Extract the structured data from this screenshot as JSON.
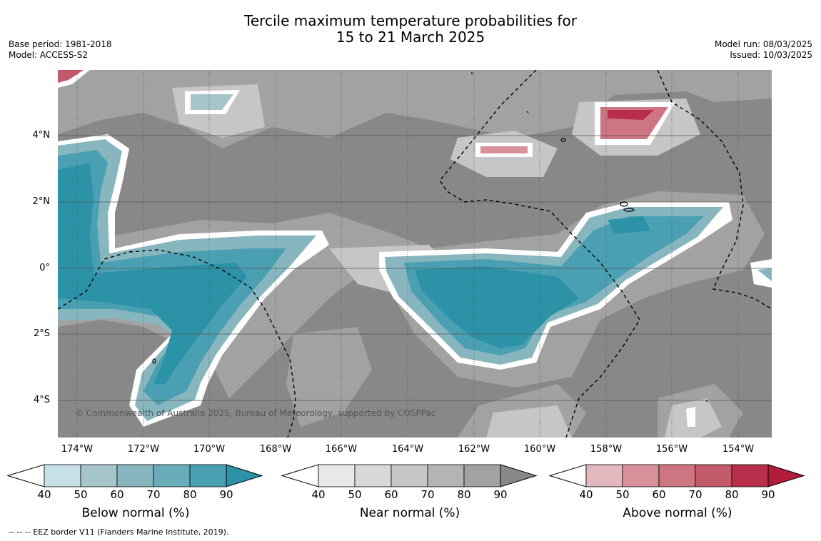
{
  "title_line1": "Tercile maximum temperature probabilities for",
  "title_line2": "15 to 21 March 2025",
  "base_period": "Base period: 1981-2018",
  "model": "Model: ACCESS-S2",
  "model_run": "Model run: 08/03/2025",
  "issued": "Issued: 10/03/2025",
  "copyright": "© Commonwealth of Australia 2025, Bureau of Meteorology, supported by COSPPac",
  "lat_labels": [
    "4°N",
    "2°N",
    "0°",
    "2°S",
    "4°S"
  ],
  "lon_labels": [
    "174°W",
    "172°W",
    "170°W",
    "168°W",
    "166°W",
    "164°W",
    "162°W",
    "160°W",
    "158°W",
    "156°W",
    "154°W"
  ],
  "colorbars": [
    {
      "label": "Below normal (%)",
      "ticks": [
        "40",
        "50",
        "60",
        "70",
        "80",
        "90"
      ],
      "colors": [
        "#c8e1e8",
        "#a6c5cb",
        "#88b6bf",
        "#6aacb9",
        "#4aa0b2",
        "#2b92a8"
      ]
    },
    {
      "label": "Near normal (%)",
      "ticks": [
        "40",
        "50",
        "60",
        "70",
        "80",
        "90"
      ],
      "colors": [
        "#e8e8e8",
        "#d8d8d8",
        "#c6c6c6",
        "#b4b4b4",
        "#a2a2a2",
        "#888888"
      ]
    },
    {
      "label": "Above normal (%)",
      "ticks": [
        "40",
        "50",
        "60",
        "70",
        "80",
        "90"
      ],
      "colors": [
        "#e3b7be",
        "#d8919b",
        "#cd7580",
        "#c35a6a",
        "#b82f4c",
        "#b01d3a"
      ]
    }
  ],
  "legend_note": "--  --  -- EEZ border V11 (Flanders Marine Institute, 2019)."
}
